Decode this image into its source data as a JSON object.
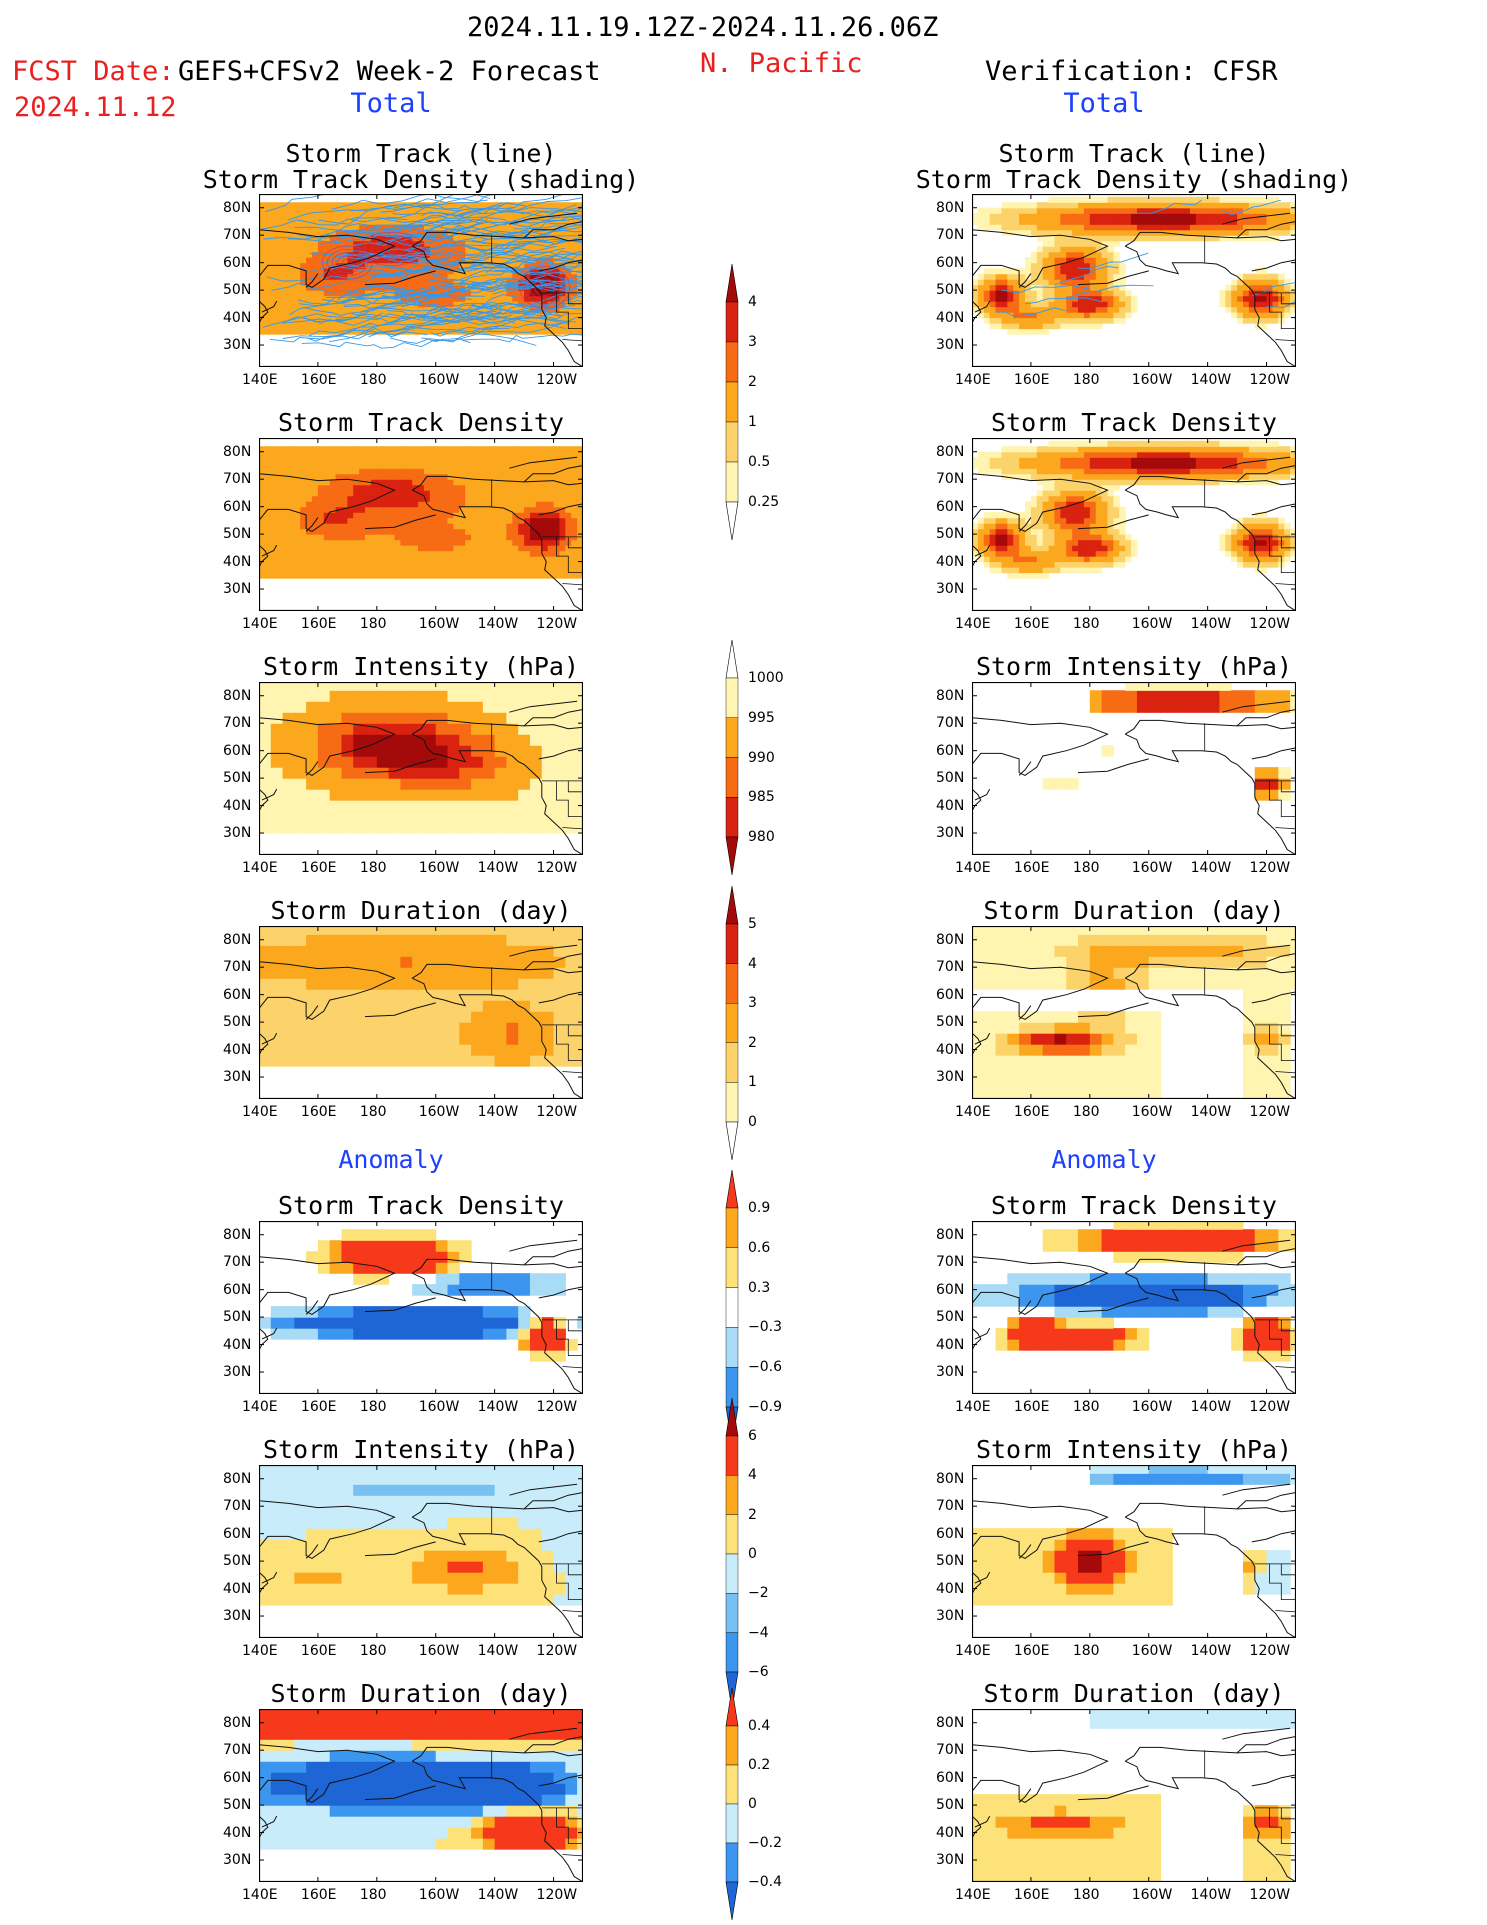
{
  "header": {
    "date_range": "2024.11.19.12Z-2024.11.26.06Z",
    "region": "N. Pacific",
    "fcst_label": "FCST Date:",
    "fcst_model": "GEFS+CFSv2 Week-2 Forecast",
    "fcst_date": "2024.11.12",
    "verification": "Verification: CFSR",
    "left_total": "Total",
    "right_total": "Total",
    "left_anomaly": "Anomaly",
    "right_anomaly": "Anomaly"
  },
  "axes": {
    "lat_ticks": [
      "80N",
      "70N",
      "60N",
      "50N",
      "40N",
      "30N"
    ],
    "lon_ticks": [
      "140E",
      "160E",
      "180",
      "160W",
      "140W",
      "120W"
    ]
  },
  "colors": {
    "map_line": "#111111",
    "track_line": "#3399ee",
    "region_red": "#e82020",
    "header_blue": "#1d3fff"
  },
  "chart_data": [
    {
      "type": "heatmap",
      "column": "forecast",
      "title": "Storm Track (line)",
      "subtitle": "Storm Track Density (shading)",
      "field": "density_tracks"
    },
    {
      "type": "heatmap",
      "column": "verification",
      "title": "Storm Track (line)",
      "subtitle": "Storm Track Density (shading)",
      "field": "density_tracks"
    },
    {
      "type": "heatmap",
      "column": "forecast",
      "title": "Storm Track Density",
      "field": "density"
    },
    {
      "type": "heatmap",
      "column": "verification",
      "title": "Storm Track Density",
      "field": "density"
    },
    {
      "type": "heatmap",
      "column": "forecast",
      "title": "Storm Intensity (hPa)",
      "field": "intensity"
    },
    {
      "type": "heatmap",
      "column": "verification",
      "title": "Storm Intensity (hPa)",
      "field": "intensity"
    },
    {
      "type": "heatmap",
      "column": "forecast",
      "title": "Storm Duration (day)",
      "field": "duration"
    },
    {
      "type": "heatmap",
      "column": "verification",
      "title": "Storm Duration (day)",
      "field": "duration"
    },
    {
      "type": "heatmap",
      "column": "forecast",
      "title": "Storm Track Density",
      "field": "density_anom"
    },
    {
      "type": "heatmap",
      "column": "verification",
      "title": "Storm Track Density",
      "field": "density_anom"
    },
    {
      "type": "heatmap",
      "column": "forecast",
      "title": "Storm Intensity (hPa)",
      "field": "intensity_anom"
    },
    {
      "type": "heatmap",
      "column": "verification",
      "title": "Storm Intensity (hPa)",
      "field": "intensity_anom"
    },
    {
      "type": "heatmap",
      "column": "forecast",
      "title": "Storm Duration (day)",
      "field": "duration_anom"
    },
    {
      "type": "heatmap",
      "column": "verification",
      "title": "Storm Duration (day)",
      "field": "duration_anom"
    }
  ],
  "colorbars": [
    {
      "name": "density",
      "levels": [
        "0.25",
        "0.5",
        "1",
        "2",
        "3",
        "4"
      ],
      "colors": [
        "#ffffff",
        "#fff5b0",
        "#fcd36a",
        "#fba81e",
        "#f66b14",
        "#d9220f",
        "#a50a0a"
      ]
    },
    {
      "name": "intensity",
      "levels": [
        "980",
        "985",
        "990",
        "995",
        "1000"
      ],
      "colors": [
        "#a50a0a",
        "#d9220f",
        "#f66b14",
        "#fba81e",
        "#fff5b0",
        "#ffffff"
      ]
    },
    {
      "name": "duration",
      "levels": [
        "0",
        "1",
        "2",
        "3",
        "4",
        "5"
      ],
      "colors": [
        "#ffffff",
        "#fff5b0",
        "#fcd36a",
        "#fba81e",
        "#f66b14",
        "#d9220f",
        "#a50a0a"
      ]
    },
    {
      "name": "density_anom",
      "levels": [
        "−0.9",
        "−0.6",
        "−0.3",
        "0.3",
        "0.6",
        "0.9"
      ],
      "colors": [
        "#1e66d6",
        "#3c96f0",
        "#a8dcf6",
        "#ffffff",
        "#fde27a",
        "#fba81e",
        "#f5391a"
      ]
    },
    {
      "name": "intensity_anom",
      "levels": [
        "−6",
        "−4",
        "−2",
        "0",
        "2",
        "4",
        "6"
      ],
      "colors": [
        "#1e66d6",
        "#3c96f0",
        "#78bff2",
        "#c8ecfa",
        "#fde27a",
        "#fba81e",
        "#f5391a",
        "#a50a0a"
      ]
    },
    {
      "name": "duration_anom",
      "levels": [
        "−0.4",
        "−0.2",
        "0",
        "0.2",
        "0.4"
      ],
      "colors": [
        "#1e66d6",
        "#3c96f0",
        "#c8ecfa",
        "#fde27a",
        "#fba81e",
        "#f5391a"
      ]
    }
  ]
}
